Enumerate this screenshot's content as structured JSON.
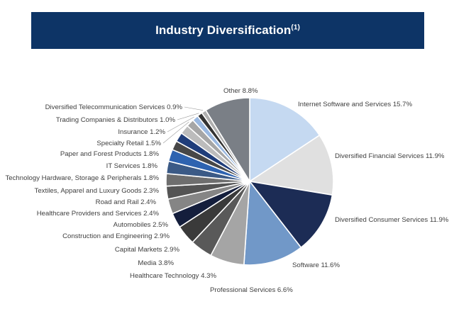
{
  "header": {
    "title": "Industry Diversification",
    "footnote_marker": "(1)"
  },
  "chart_data": {
    "type": "pie",
    "title": "Industry Diversification",
    "start": "12 o'clock, clockwise",
    "categories": [
      "Internet Software and Services",
      "Diversified Financial Services",
      "Diversified Consumer Services",
      "Software",
      "Professional Services",
      "Healthcare Technology",
      "Media",
      "Capital Markets",
      "Construction and Engineering",
      "Automobiles",
      "Healthcare Providers and Services",
      "Road and Rail",
      "Textiles, Apparel and Luxury Goods",
      "Technology Hardware, Storage & Peripherals",
      "IT Services",
      "Paper and Forest Products",
      "Specialty Retail",
      "Insurance",
      "Trading Companies & Distributors",
      "Diversified Telecommunication Services",
      "Other"
    ],
    "values": [
      15.7,
      11.9,
      11.9,
      11.6,
      6.6,
      4.3,
      3.8,
      2.9,
      2.9,
      2.5,
      2.4,
      2.4,
      2.3,
      1.8,
      1.8,
      1.8,
      1.5,
      1.2,
      1.0,
      0.9,
      8.8
    ],
    "labels": [
      "Internet Software and Services 15.7%",
      "Diversified Financial Services 11.9%",
      "Diversified Consumer Services 11.9%",
      "Software 11.6%",
      "Professional Services 6.6%",
      "Healthcare Technology 4.3%",
      "Media 3.8%",
      "Capital Markets 2.9%",
      "Construction and Engineering 2.9%",
      "Automobiles 2.5%",
      "Healthcare Providers and Services 2.4%",
      "Road and Rail 2.4%",
      "Textiles, Apparel and Luxury Goods 2.3%",
      "Technology Hardware, Storage & Peripherals 1.8%",
      "IT Services  1.8%",
      "Paper and Forest Products 1.8%",
      "Specialty Retail 1.5%",
      "Insurance 1.2%",
      "Trading Companies & Distributors 1.0%",
      "Diversified Telecommunication Services 0.9%",
      "Other 8.8%"
    ],
    "colors": [
      "#c5d9f1",
      "#e0e0e0",
      "#1c2c55",
      "#7198c8",
      "#a5a5a5",
      "#595959",
      "#3a3a3a",
      "#141e3c",
      "#858585",
      "#545454",
      "#6e6e6e",
      "#3b5a86",
      "#2e63b0",
      "#474747",
      "#1f3d7a",
      "#bcbcbc",
      "#a6a6a6",
      "#9ab8e0",
      "#333333",
      "#b0b0b0",
      "#7a7f86"
    ]
  }
}
